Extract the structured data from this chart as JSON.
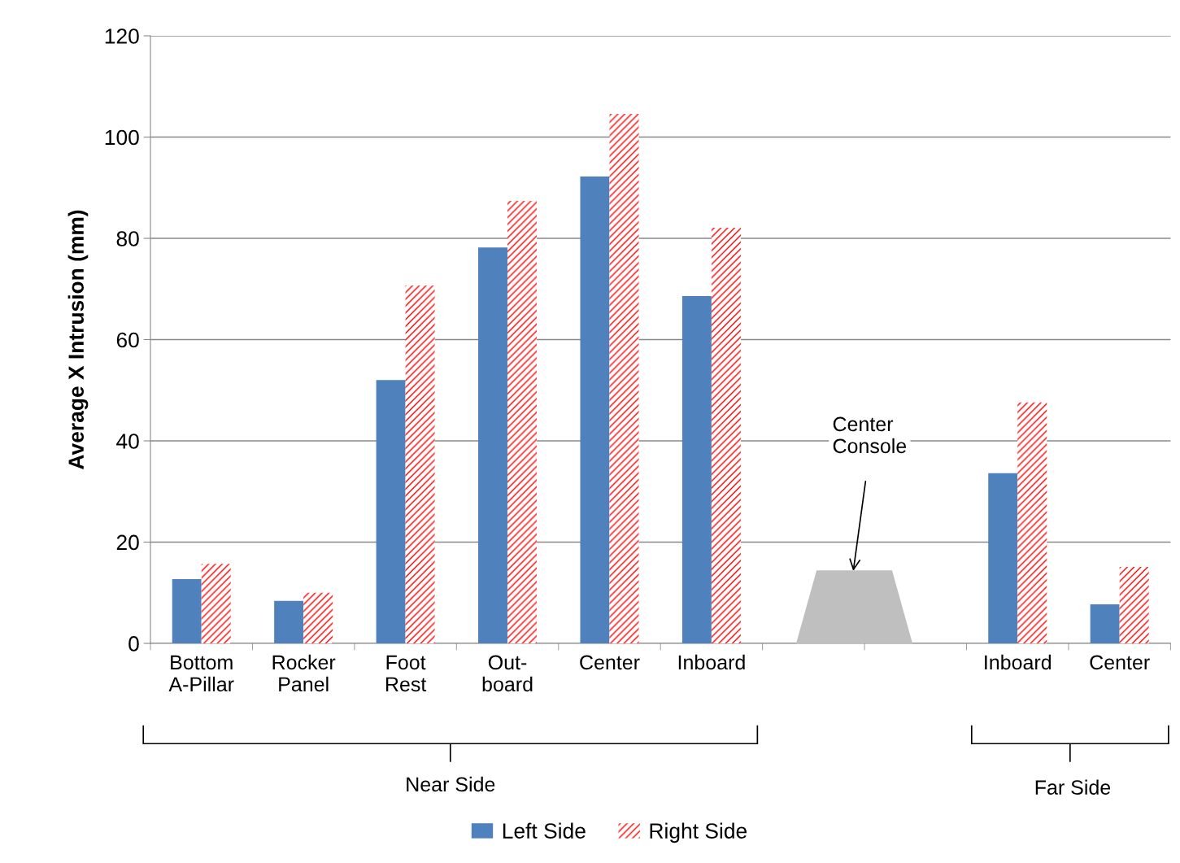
{
  "chart_data": {
    "type": "bar",
    "ylabel": "Average X Intrusion (mm)",
    "categories": [
      "Bottom\nA-Pillar",
      "Rocker\nPanel",
      "Foot\nRest",
      "Out-\nboard",
      "Center",
      "Inboard",
      null,
      null,
      "Inboard",
      "Center"
    ],
    "series": [
      {
        "name": "Left Side",
        "color": "#4f81bd",
        "values": [
          12.7,
          8.4,
          52.0,
          78.2,
          92.2,
          68.6,
          null,
          null,
          33.6,
          7.7
        ]
      },
      {
        "name": "Right Side",
        "color": "#ff0000",
        "values": [
          15.7,
          10.0,
          70.7,
          87.4,
          104.6,
          82.1,
          null,
          null,
          47.6,
          15.1
        ]
      }
    ],
    "ylim": [
      0,
      120
    ],
    "yticks": [
      0,
      20,
      40,
      60,
      80,
      100,
      120
    ],
    "grid": "y",
    "legend": "bottom",
    "annotations": [
      "Near Side",
      "Far Side",
      "Center\nConsole"
    ]
  }
}
